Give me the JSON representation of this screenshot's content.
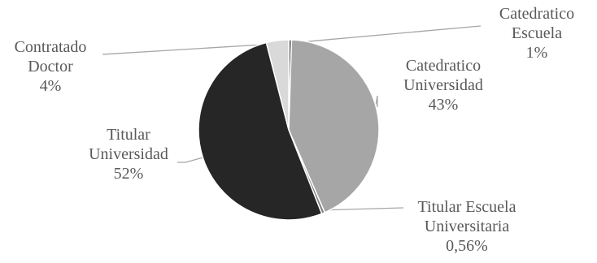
{
  "chart_data": {
    "type": "pie",
    "title": "",
    "slices": [
      {
        "lines": [
          "Catedratico",
          "Escuela",
          "1%"
        ],
        "value": 0.5,
        "color": "#595959"
      },
      {
        "lines": [
          "Catedratico",
          "Universidad",
          "43%"
        ],
        "value": 43,
        "color": "#a6a6a6"
      },
      {
        "lines": [
          "Titular Escuela",
          "Universitaria",
          "0,56%"
        ],
        "value": 0.56,
        "color": "#7f7f7f"
      },
      {
        "lines": [
          "Titular",
          "Universidad",
          "52%"
        ],
        "value": 52,
        "color": "#262626"
      },
      {
        "lines": [
          "Contratado",
          "Doctor",
          "4%"
        ],
        "value": 4,
        "color": "#d9d9d9"
      }
    ]
  }
}
